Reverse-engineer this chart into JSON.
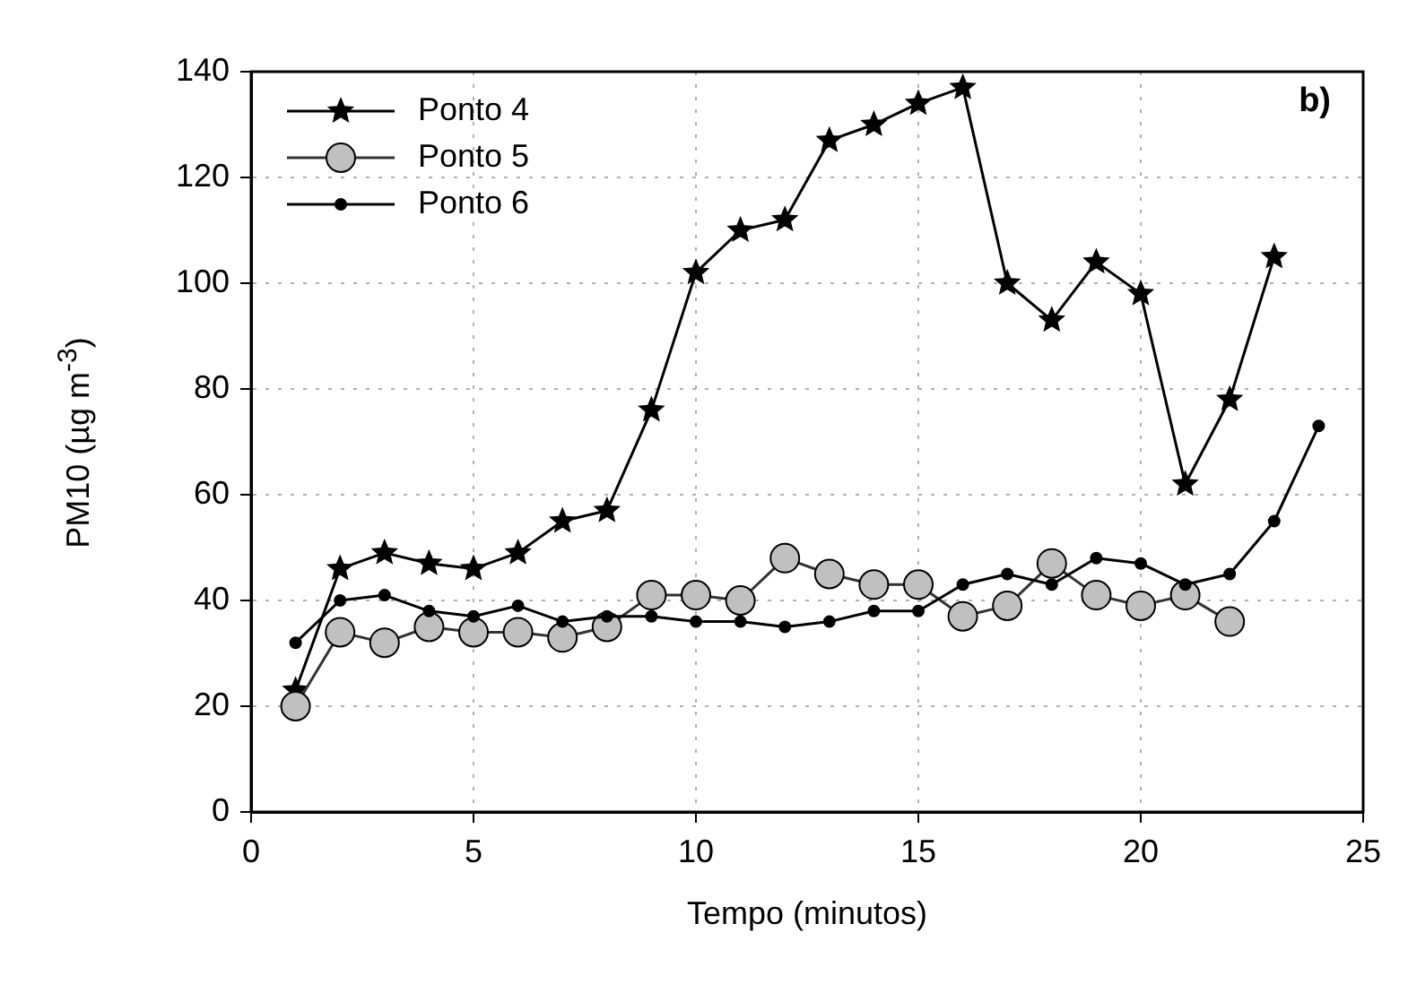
{
  "chart_data": {
    "type": "line",
    "xlabel": "Tempo (minutos)",
    "ylabel": "PM10 (µg m$^{-3}$)",
    "annotations": [
      "b)"
    ],
    "xlim": [
      0,
      25
    ],
    "xticks": [
      0,
      5,
      10,
      15,
      20,
      25
    ],
    "ylim": [
      0,
      140
    ],
    "yticks": [
      0,
      20,
      40,
      60,
      80,
      100,
      120,
      140
    ],
    "grid": true,
    "legend": "top left",
    "line_style": "solid",
    "series": [
      {
        "name": "Ponto 4",
        "color": "#000000",
        "marker": "star",
        "x": [
          1,
          2,
          3,
          4,
          5,
          6,
          7,
          8,
          9,
          10,
          11,
          12,
          13,
          14,
          15,
          16,
          17,
          18,
          19,
          20,
          21,
          22,
          23
        ],
        "values": [
          23,
          46,
          49,
          47,
          46,
          49,
          55,
          57,
          76,
          102,
          110,
          112,
          127,
          130,
          134,
          137,
          100,
          93,
          104,
          98,
          62,
          78,
          105
        ]
      },
      {
        "name": "Ponto 5",
        "color": "#c0c0c0",
        "marker": "circle",
        "x": [
          1,
          2,
          3,
          4,
          5,
          6,
          7,
          8,
          9,
          10,
          11,
          12,
          13,
          14,
          15,
          16,
          17,
          18,
          19,
          20,
          21,
          22
        ],
        "values": [
          20,
          34,
          32,
          35,
          34,
          34,
          33,
          35,
          41,
          41,
          40,
          48,
          45,
          43,
          43,
          37,
          39,
          47,
          41,
          39,
          41,
          36
        ]
      },
      {
        "name": "Ponto 6",
        "color": "#000000",
        "marker": "circle",
        "x": [
          1,
          2,
          3,
          4,
          5,
          6,
          7,
          8,
          9,
          10,
          11,
          12,
          13,
          14,
          15,
          16,
          17,
          18,
          19,
          20,
          21,
          22,
          23,
          24
        ],
        "values": [
          32,
          40,
          41,
          38,
          37,
          39,
          36,
          37,
          37,
          36,
          36,
          35,
          36,
          38,
          38,
          43,
          45,
          43,
          48,
          47,
          43,
          45,
          55,
          73
        ]
      }
    ]
  }
}
